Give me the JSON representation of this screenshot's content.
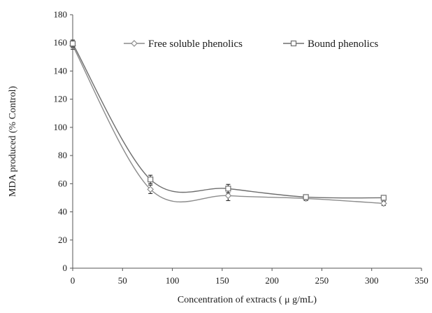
{
  "chart_data": {
    "type": "line",
    "title": "",
    "xlabel": "Concentration of extracts ( μ g/mL)",
    "ylabel": "MDA produced (% Control)",
    "xlim": [
      0,
      350
    ],
    "ylim": [
      0,
      180
    ],
    "xticks": [
      0,
      50,
      100,
      150,
      200,
      250,
      300,
      350
    ],
    "yticks": [
      0,
      20,
      40,
      60,
      80,
      100,
      120,
      140,
      160,
      180
    ],
    "grid": false,
    "legend_position": "top",
    "series": [
      {
        "name": "Free soluble phenolics",
        "marker": "diamond",
        "color": "#8c8c8c",
        "x": [
          0,
          78,
          156,
          234,
          312
        ],
        "y": [
          158,
          56,
          51.5,
          49.5,
          46
        ],
        "error": [
          2.5,
          3,
          3.5,
          1.5,
          1.5
        ]
      },
      {
        "name": "Bound phenolics",
        "marker": "square",
        "color": "#6e6e6e",
        "x": [
          0,
          78,
          156,
          234,
          312
        ],
        "y": [
          159.5,
          63,
          56.5,
          50.5,
          50
        ],
        "error": [
          2.5,
          3,
          3,
          1.5,
          1.5
        ]
      }
    ]
  }
}
